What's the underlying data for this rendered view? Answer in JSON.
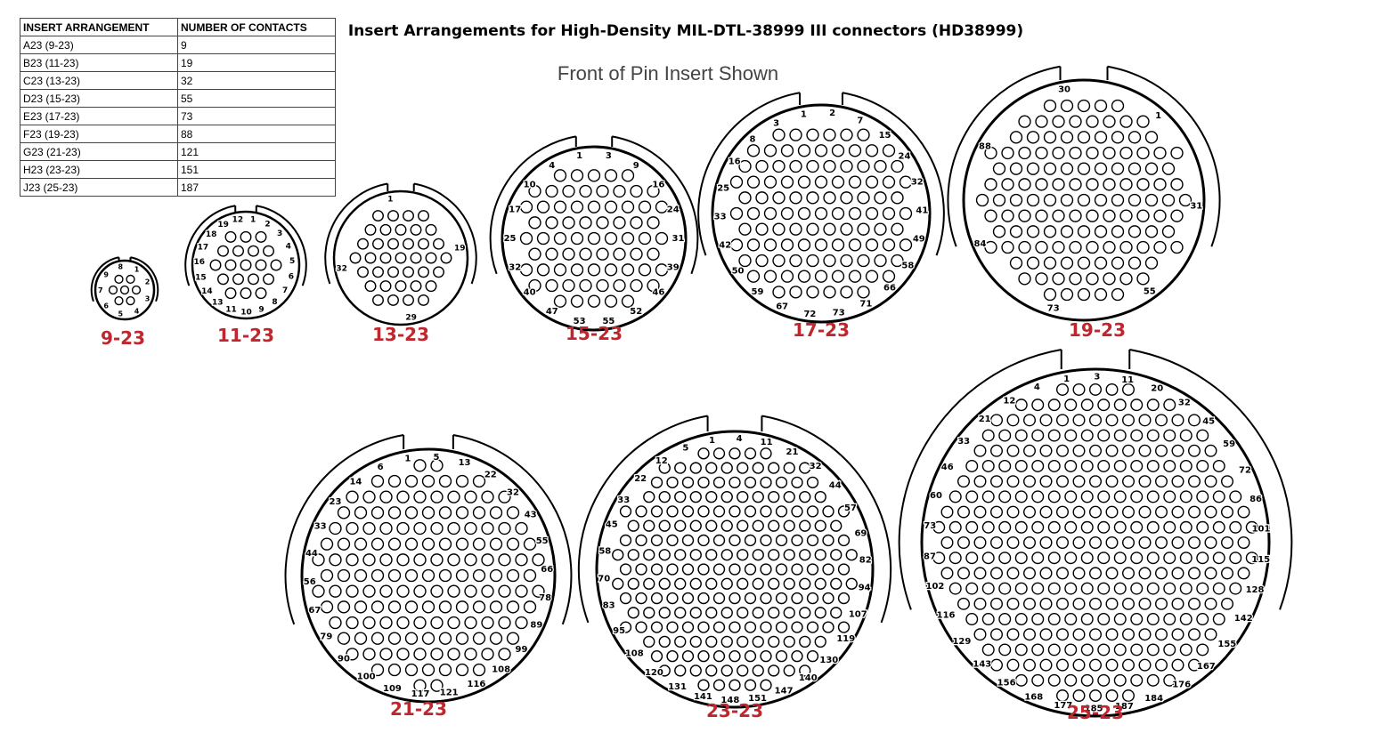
{
  "header": {
    "title": "Insert Arrangements for High-Density MIL-DTL-38999 III connectors (HD38999)",
    "subtitle": "Front of Pin Insert Shown"
  },
  "table": {
    "columns": [
      "INSERT ARRANGEMENT",
      "NUMBER OF CONTACTS"
    ],
    "rows": [
      [
        "A23 (9-23)",
        "9"
      ],
      [
        "B23 (11-23)",
        "19"
      ],
      [
        "C23 (13-23)",
        "32"
      ],
      [
        "D23 (15-23)",
        "55"
      ],
      [
        "E23 (17-23)",
        "73"
      ],
      [
        "F23 (19-23)",
        "88"
      ],
      [
        "G23 (21-23)",
        "121"
      ],
      [
        "H23 (23-23)",
        "151"
      ],
      [
        "J23 (25-23)",
        "187"
      ]
    ]
  },
  "connectors": [
    {
      "label": "9-23",
      "pins": [
        "8",
        "1",
        "2",
        "3",
        "4",
        "5",
        "6",
        "7",
        "9"
      ]
    },
    {
      "label": "11-23",
      "pins": [
        "12",
        "1",
        "2",
        "3",
        "4",
        "5",
        "6",
        "7",
        "8",
        "9",
        "10",
        "11",
        "13",
        "14",
        "15",
        "16",
        "17",
        "18",
        "19"
      ]
    },
    {
      "label": "13-23",
      "pins": [
        "1",
        "19",
        "29",
        "32"
      ]
    },
    {
      "label": "15-23",
      "pins": [
        "1",
        "3",
        "9",
        "16",
        "24",
        "31",
        "39",
        "46",
        "52",
        "55",
        "53",
        "47",
        "40",
        "32",
        "25",
        "17",
        "10",
        "4"
      ]
    },
    {
      "label": "17-23",
      "pins": [
        "1",
        "2",
        "7",
        "15",
        "24",
        "32",
        "41",
        "49",
        "58",
        "66",
        "71",
        "73",
        "72",
        "67",
        "59",
        "50",
        "42",
        "33",
        "25",
        "16",
        "8",
        "3"
      ]
    },
    {
      "label": "19-23",
      "pins": [
        "30",
        "1",
        "31",
        "55",
        "73",
        "84",
        "88"
      ]
    },
    {
      "label": "21-23",
      "pins": [
        "1",
        "5",
        "13",
        "22",
        "32",
        "43",
        "55",
        "66",
        "78",
        "89",
        "99",
        "108",
        "116",
        "121",
        "117",
        "109",
        "100",
        "90",
        "79",
        "67",
        "56",
        "44",
        "33",
        "23",
        "14",
        "6"
      ]
    },
    {
      "label": "23-23",
      "pins": [
        "1",
        "4",
        "11",
        "21",
        "32",
        "44",
        "57",
        "69",
        "82",
        "94",
        "107",
        "119",
        "130",
        "140",
        "147",
        "151",
        "148",
        "141",
        "131",
        "120",
        "108",
        "95",
        "83",
        "70",
        "58",
        "45",
        "33",
        "22",
        "12",
        "5"
      ]
    },
    {
      "label": "25-23",
      "pins": [
        "1",
        "3",
        "11",
        "20",
        "32",
        "45",
        "59",
        "72",
        "86",
        "101",
        "115",
        "128",
        "142",
        "155",
        "167",
        "176",
        "184",
        "187",
        "185",
        "177",
        "168",
        "156",
        "143",
        "129",
        "116",
        "102",
        "87",
        "73",
        "60",
        "46",
        "33",
        "21",
        "12",
        "4"
      ]
    }
  ]
}
